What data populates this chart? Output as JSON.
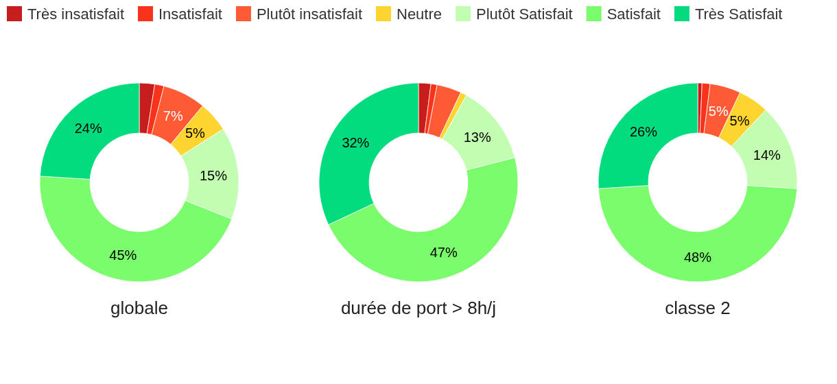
{
  "chart_data": [
    {
      "type": "donut",
      "title": "globale",
      "legend": "top",
      "categories": [
        "Très insatisfait",
        "Insatisfait",
        "Plutôt insatisfait",
        "Neutre",
        "Plutôt Satisfait",
        "Satisfait",
        "Très Satisfait"
      ],
      "values": [
        2.5,
        1.5,
        7,
        5,
        15,
        45,
        24
      ],
      "value_labels": [
        null,
        null,
        "7%",
        "5%",
        "15%",
        "45%",
        "24%"
      ],
      "colors": [
        "#c71e1d",
        "#f8331a",
        "#fe5a36",
        "#fed431",
        "#c2fdb2",
        "#7afc6c",
        "#03dc7e"
      ]
    },
    {
      "type": "donut",
      "title": "durée de port > 8h/j",
      "values": [
        2,
        1,
        4,
        1,
        13,
        47,
        32
      ],
      "value_labels": [
        null,
        null,
        null,
        null,
        "13%",
        "47%",
        "32%"
      ],
      "colors": [
        "#c71e1d",
        "#f8331a",
        "#fe5a36",
        "#fed431",
        "#c2fdb2",
        "#7afc6c",
        "#03dc7e"
      ]
    },
    {
      "type": "donut",
      "title": "classe 2",
      "values": [
        0.7,
        1.3,
        5,
        5,
        14,
        48,
        26
      ],
      "value_labels": [
        null,
        null,
        "5%",
        "5%",
        "14%",
        "48%",
        "26%"
      ],
      "colors": [
        "#c71e1d",
        "#f8331a",
        "#fe5a36",
        "#fed431",
        "#c2fdb2",
        "#7afc6c",
        "#03dc7e"
      ]
    }
  ]
}
